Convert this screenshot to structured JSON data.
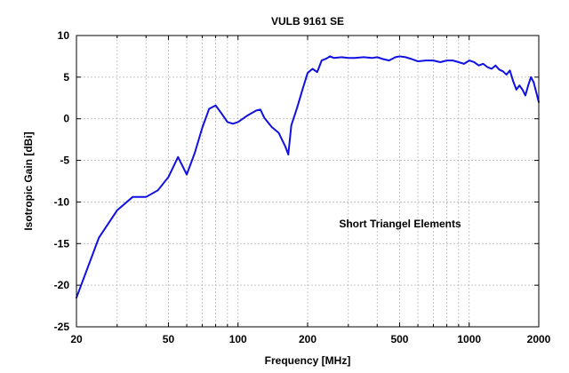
{
  "chart_data": {
    "type": "line",
    "title": "VULB 9161 SE",
    "xlabel": "Frequency [MHz]",
    "ylabel": "Isotropic Gain [dBi]",
    "xscale": "log",
    "xlim": [
      20,
      2000
    ],
    "ylim": [
      -25,
      10
    ],
    "grid": true,
    "x_major_ticks": [
      20,
      50,
      100,
      200,
      500,
      1000,
      2000
    ],
    "x_major_tick_labels": [
      "20",
      "50",
      "100",
      "200",
      "500",
      "1000",
      "2000"
    ],
    "x_minor_gridlines": [
      30,
      40,
      60,
      70,
      80,
      90,
      300,
      400,
      600,
      700,
      800,
      900
    ],
    "y_ticks": [
      -25,
      -20,
      -15,
      -10,
      -5,
      0,
      5,
      10
    ],
    "y_tick_labels": [
      "-25",
      "-20",
      "-15",
      "-10",
      "-5",
      "0",
      "5",
      "10"
    ],
    "annotation": "Short Triangel Elements",
    "line_color": "#1010e0",
    "series": [
      {
        "name": "VULB 9161 SE",
        "x": [
          20,
          25,
          30,
          35,
          40,
          45,
          50,
          55,
          60,
          65,
          70,
          75,
          80,
          85,
          90,
          95,
          100,
          110,
          120,
          125,
          130,
          140,
          150,
          160,
          165,
          170,
          180,
          190,
          200,
          210,
          220,
          230,
          240,
          250,
          260,
          280,
          300,
          320,
          350,
          380,
          400,
          420,
          450,
          480,
          500,
          530,
          560,
          600,
          650,
          700,
          750,
          800,
          850,
          900,
          950,
          1000,
          1050,
          1100,
          1150,
          1200,
          1250,
          1300,
          1350,
          1400,
          1450,
          1500,
          1550,
          1600,
          1650,
          1700,
          1750,
          1800,
          1850,
          1900,
          1950,
          2000
        ],
        "y": [
          -21.5,
          -14.3,
          -11.0,
          -9.4,
          -9.4,
          -8.6,
          -7.0,
          -4.6,
          -6.7,
          -4.1,
          -1.1,
          1.2,
          1.6,
          0.6,
          -0.4,
          -0.6,
          -0.4,
          0.4,
          1.0,
          1.1,
          0.1,
          -1.0,
          -1.7,
          -3.3,
          -4.3,
          -0.8,
          1.3,
          3.5,
          5.5,
          6.0,
          5.6,
          7.0,
          7.2,
          7.5,
          7.3,
          7.4,
          7.3,
          7.3,
          7.4,
          7.3,
          7.4,
          7.2,
          7.0,
          7.4,
          7.5,
          7.4,
          7.2,
          6.9,
          7.0,
          7.0,
          6.8,
          7.0,
          7.0,
          6.8,
          6.6,
          7.0,
          6.8,
          6.4,
          6.6,
          6.2,
          6.0,
          6.4,
          5.9,
          5.7,
          5.3,
          5.8,
          4.5,
          3.5,
          4.0,
          3.5,
          2.8,
          4.0,
          5.0,
          4.4,
          3.2,
          2.0
        ]
      }
    ]
  }
}
